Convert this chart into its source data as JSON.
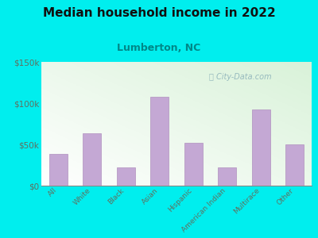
{
  "title": "Median household income in 2022",
  "subtitle": "Lumberton, NC",
  "categories": [
    "All",
    "White",
    "Black",
    "Asian",
    "Hispanic",
    "American Indian",
    "Multirace",
    "Other"
  ],
  "values": [
    38000,
    63000,
    22000,
    108000,
    52000,
    22000,
    92000,
    50000
  ],
  "bar_color": "#c4a8d4",
  "bar_edge_color": "#b090be",
  "background_outer": "#00eeee",
  "title_color": "#111111",
  "subtitle_color": "#008888",
  "tick_color": "#607060",
  "ylim": [
    0,
    150000
  ],
  "yticks": [
    0,
    50000,
    100000,
    150000
  ],
  "ytick_labels": [
    "$0",
    "$50k",
    "$100k",
    "$150k"
  ],
  "watermark": "City-Data.com"
}
